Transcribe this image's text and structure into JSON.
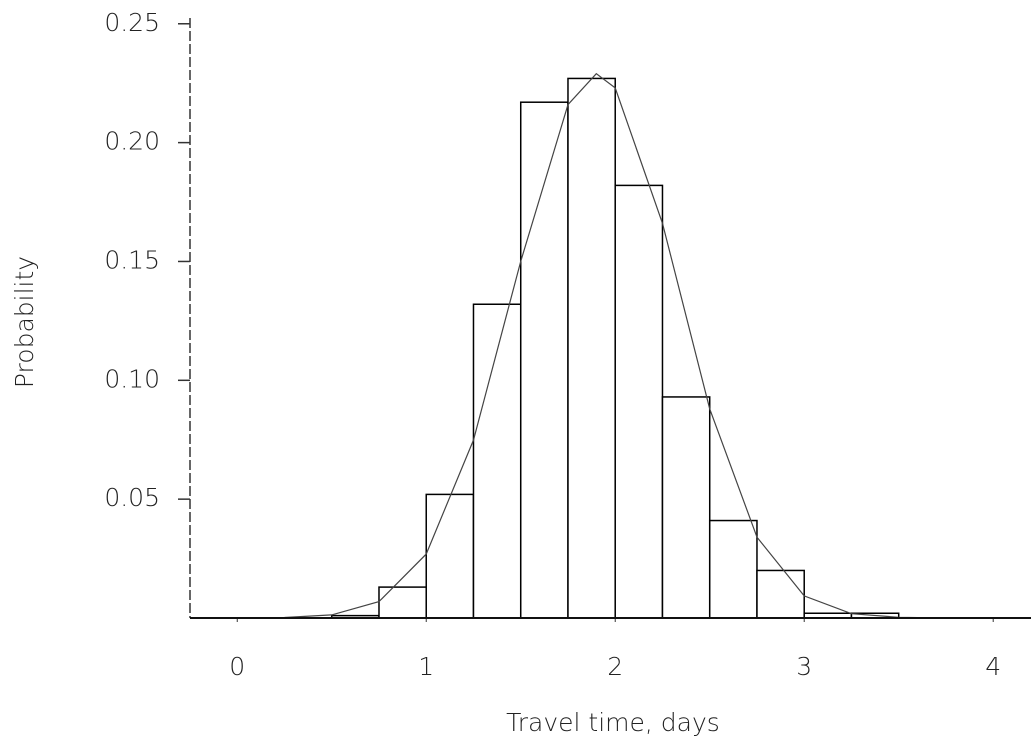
{
  "chart_data": {
    "type": "histogram",
    "xlabel": "Travel time, days",
    "ylabel": "Probability",
    "bins": [
      0.5,
      0.75,
      1.0,
      1.25,
      1.5,
      1.75,
      2.0,
      2.25,
      2.5,
      2.75,
      3.0,
      3.25,
      3.5
    ],
    "values": [
      0.001,
      0.013,
      0.052,
      0.132,
      0.217,
      0.227,
      0.182,
      0.093,
      0.041,
      0.02,
      0.002,
      0.002
    ],
    "color": "#ffffff",
    "edgecolor": "#000000",
    "curve": {
      "x": [
        0,
        0.25,
        0.5,
        0.75,
        1.0,
        1.25,
        1.5,
        1.75,
        1.9,
        2.0,
        2.25,
        2.5,
        2.75,
        3.0,
        3.25,
        3.5,
        3.75,
        4.0
      ],
      "values": [
        0,
        0.0002,
        0.0013,
        0.0069,
        0.0269,
        0.0749,
        0.15,
        0.216,
        0.229,
        0.223,
        0.166,
        0.088,
        0.034,
        0.0093,
        0.0018,
        0.0003,
        0,
        0
      ],
      "color": "#444444"
    },
    "xlim": [
      -0.25,
      4.2
    ],
    "ylim": [
      0,
      0.26
    ],
    "xticks": [
      0,
      1,
      2,
      3,
      4
    ],
    "yticks": [
      0.05,
      {
        "value": 0.1,
        "label": "0.10"
      },
      0.15,
      {
        "value": 0.2,
        "label": "0.20"
      },
      0.25
    ]
  }
}
